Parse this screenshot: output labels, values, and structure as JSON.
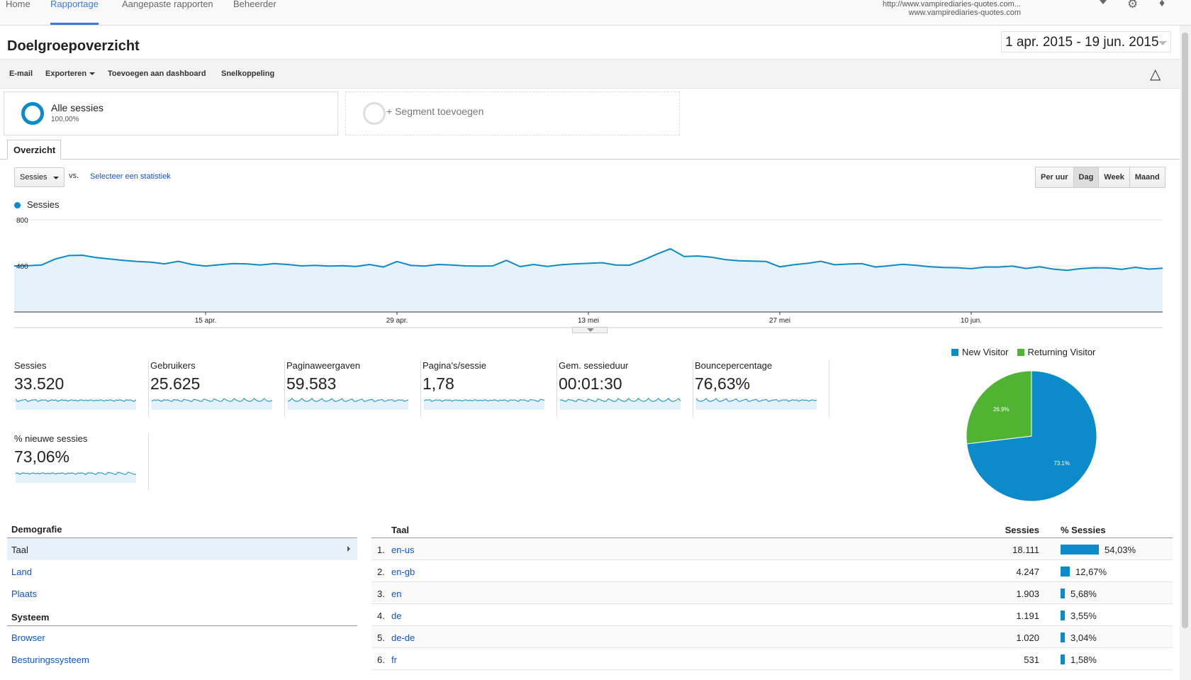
{
  "topnav": {
    "tabs": [
      {
        "label": "Home",
        "active": false
      },
      {
        "label": "Rapportage",
        "active": true
      },
      {
        "label": "Aangepaste rapporten",
        "active": false
      },
      {
        "label": "Beheerder",
        "active": false
      }
    ],
    "account_line1": "http://www.vampirediaries-quotes.com...",
    "account_line2": "www.vampirediaries-quotes.com",
    "icons": [
      "chevron-down-icon",
      "gear-icon",
      "bell-icon"
    ]
  },
  "page": {
    "title": "Doelgroepoverzicht",
    "date_range": "1 apr. 2015 - 19 jun. 2015"
  },
  "toolbar": {
    "email": "E-mail",
    "export": "Exporteren",
    "add_dashboard": "Toevoegen aan dashboard",
    "shortcut": "Snelkoppeling",
    "help_icon": "graduation-cap-icon"
  },
  "segments": {
    "all_name": "Alle sessies",
    "all_pct": "100,00%",
    "add_label": "+ Segment toevoegen"
  },
  "tabs": {
    "overview": "Overzicht"
  },
  "controls": {
    "metric": "Sessies",
    "vs": "vs.",
    "select_stat": "Selecteer een statistiek",
    "granularity": [
      {
        "label": "Per uur",
        "active": false
      },
      {
        "label": "Dag",
        "active": true
      },
      {
        "label": "Week",
        "active": false
      },
      {
        "label": "Maand",
        "active": false
      }
    ]
  },
  "chart_data": {
    "type": "area",
    "series": [
      {
        "name": "Sessies",
        "values": [
          400,
          402,
          408,
          460,
          490,
          492,
          472,
          460,
          448,
          438,
          432,
          418,
          440,
          412,
          398,
          410,
          420,
          418,
          408,
          420,
          412,
          400,
          404,
          398,
          402,
          395,
          412,
          390,
          438,
          405,
          398,
          412,
          408,
          400,
          398,
          400,
          448,
          394,
          412,
          395,
          410,
          418,
          422,
          428,
          408,
          406,
          450,
          502,
          548,
          482,
          486,
          476,
          455,
          444,
          442,
          438,
          392,
          410,
          422,
          440,
          410,
          416,
          420,
          390,
          402,
          414,
          404,
          392,
          386,
          384,
          376,
          390,
          390,
          398,
          378,
          392,
          372,
          362,
          376,
          384,
          382,
          370,
          388,
          372,
          380
        ]
      }
    ],
    "y_ticks": [
      "800",
      "400"
    ],
    "ylim": [
      0,
      800
    ],
    "x_tick_labels": [
      "15 apr.",
      "29 apr.",
      "13 mei",
      "27 mei",
      "10 jun."
    ],
    "color": "#0b8bc9",
    "grid": true
  },
  "metrics": [
    {
      "label": "Sessies",
      "value": "33.520"
    },
    {
      "label": "Gebruikers",
      "value": "25.625"
    },
    {
      "label": "Paginaweergaven",
      "value": "59.583"
    },
    {
      "label": "Pagina's/sessie",
      "value": "1,78"
    },
    {
      "label": "Gem. sessieduur",
      "value": "00:01:30"
    },
    {
      "label": "Bouncepercentage",
      "value": "76,63%"
    },
    {
      "label": "% nieuwe sessies",
      "value": "73,06%"
    }
  ],
  "pie": {
    "legend": [
      {
        "name": "New Visitor",
        "color": "#0b8bc9"
      },
      {
        "name": "Returning Visitor",
        "color": "#50b432"
      }
    ],
    "slices": [
      {
        "name": "New Visitor",
        "value": 73.1,
        "label": "73.1%",
        "color": "#0b8bc9"
      },
      {
        "name": "Returning Visitor",
        "value": 26.9,
        "label": "26.9%",
        "color": "#50b432"
      }
    ]
  },
  "demographics": {
    "header": "Demografie",
    "items": [
      "Taal",
      "Land",
      "Plaats"
    ],
    "system_header": "Systeem",
    "system_items": [
      "Browser",
      "Besturingssysteem"
    ]
  },
  "language_table": {
    "col_lang": "Taal",
    "col_sessions": "Sessies",
    "col_pct": "% Sessies",
    "rows": [
      {
        "n": "1.",
        "lang": "en-us",
        "sessions": "18.111",
        "pct": "54,03%",
        "frac": 0.5403
      },
      {
        "n": "2.",
        "lang": "en-gb",
        "sessions": "4.247",
        "pct": "12,67%",
        "frac": 0.1267
      },
      {
        "n": "3.",
        "lang": "en",
        "sessions": "1.903",
        "pct": "5,68%",
        "frac": 0.0568
      },
      {
        "n": "4.",
        "lang": "de",
        "sessions": "1.191",
        "pct": "3,55%",
        "frac": 0.0355
      },
      {
        "n": "5.",
        "lang": "de-de",
        "sessions": "1.020",
        "pct": "3,04%",
        "frac": 0.0304
      },
      {
        "n": "6.",
        "lang": "fr",
        "sessions": "531",
        "pct": "1,58%",
        "frac": 0.0158
      }
    ]
  }
}
